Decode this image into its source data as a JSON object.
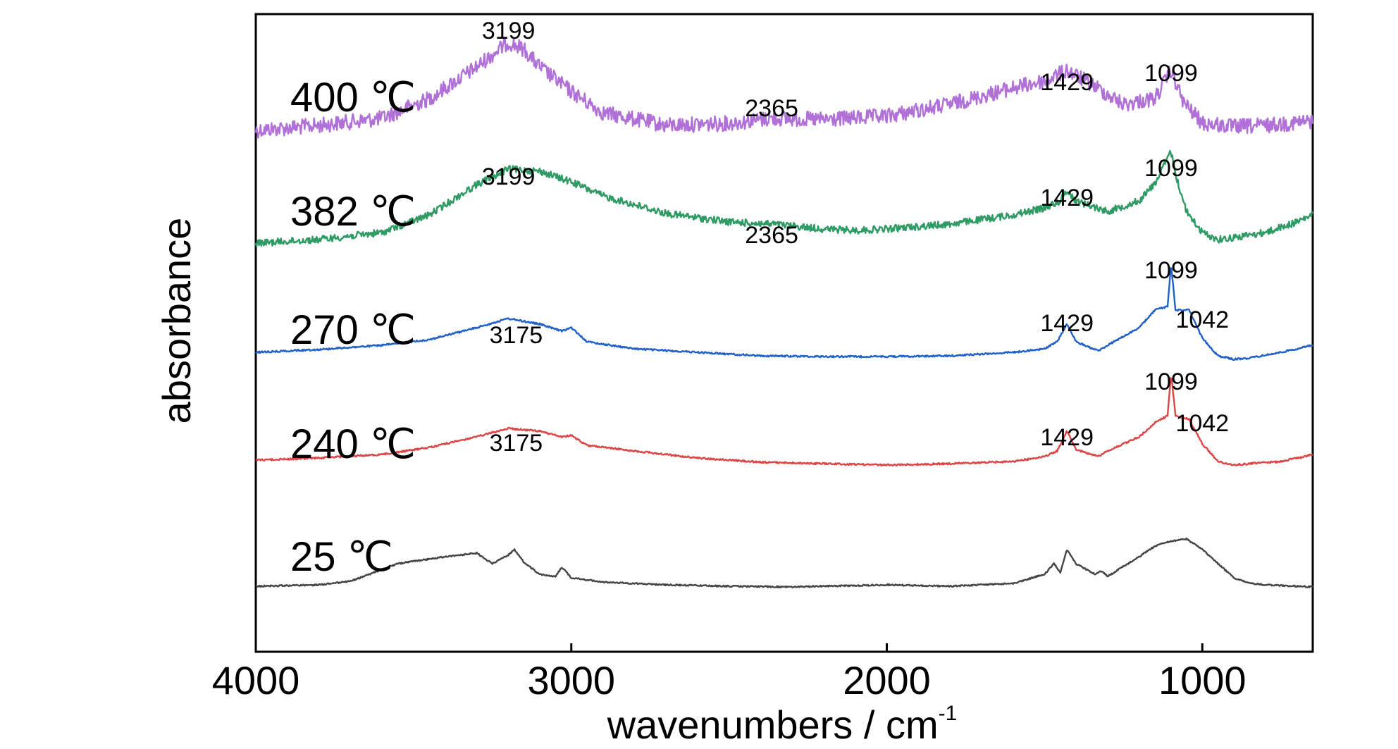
{
  "chart_data": {
    "type": "line",
    "xlabel": "wavenumbers / cm",
    "xlabel_superscript": "-1",
    "ylabel": "absorbance",
    "xlim": [
      4000,
      650
    ],
    "x_reversed": true,
    "x_ticks": [
      4000,
      3000,
      2000,
      1000
    ],
    "y_ticks_shown": false,
    "grid": false,
    "series": [
      {
        "name": "400 ℃",
        "color": "#b070d8",
        "noise": 11,
        "baseline": [
          [
            4000,
            185
          ],
          [
            3800,
            178
          ],
          [
            3600,
            168
          ],
          [
            3450,
            140
          ],
          [
            3300,
            95
          ],
          [
            3200,
            60
          ],
          [
            3150,
            70
          ],
          [
            3100,
            95
          ],
          [
            3000,
            130
          ],
          [
            2900,
            160
          ],
          [
            2700,
            178
          ],
          [
            2500,
            175
          ],
          [
            2365,
            168
          ],
          [
            2200,
            170
          ],
          [
            2000,
            165
          ],
          [
            1800,
            148
          ],
          [
            1600,
            125
          ],
          [
            1500,
            115
          ],
          [
            1429,
            100
          ],
          [
            1350,
            120
          ],
          [
            1250,
            148
          ],
          [
            1150,
            140
          ],
          [
            1099,
            100
          ],
          [
            1060,
            145
          ],
          [
            1000,
            175
          ],
          [
            900,
            180
          ],
          [
            800,
            178
          ],
          [
            650,
            172
          ]
        ],
        "peaks": [
          {
            "label": "3199",
            "x": 3199
          },
          {
            "label": "2365",
            "x": 2365
          },
          {
            "label": "1429",
            "x": 1429
          },
          {
            "label": "1099",
            "x": 1099
          }
        ]
      },
      {
        "name": "382 ℃",
        "color": "#2e9a64",
        "noise": 5,
        "baseline": [
          [
            4000,
            345
          ],
          [
            3800,
            340
          ],
          [
            3600,
            330
          ],
          [
            3450,
            305
          ],
          [
            3300,
            262
          ],
          [
            3200,
            240
          ],
          [
            3100,
            243
          ],
          [
            3000,
            258
          ],
          [
            2900,
            278
          ],
          [
            2700,
            303
          ],
          [
            2500,
            315
          ],
          [
            2365,
            318
          ],
          [
            2200,
            325
          ],
          [
            2100,
            327
          ],
          [
            2000,
            325
          ],
          [
            1800,
            318
          ],
          [
            1600,
            305
          ],
          [
            1500,
            295
          ],
          [
            1450,
            285
          ],
          [
            1429,
            270
          ],
          [
            1400,
            285
          ],
          [
            1300,
            300
          ],
          [
            1200,
            285
          ],
          [
            1150,
            260
          ],
          [
            1099,
            215
          ],
          [
            1080,
            255
          ],
          [
            1050,
            300
          ],
          [
            1000,
            330
          ],
          [
            950,
            340
          ],
          [
            900,
            337
          ],
          [
            800,
            330
          ],
          [
            700,
            315
          ],
          [
            650,
            305
          ]
        ],
        "peaks": [
          {
            "label": "3199",
            "x": 3199
          },
          {
            "label": "2365",
            "x": 2365
          },
          {
            "label": "1429",
            "x": 1429
          },
          {
            "label": "1099",
            "x": 1099
          }
        ]
      },
      {
        "name": "270 ℃",
        "color": "#2060c8",
        "noise": 1.2,
        "baseline": [
          [
            4000,
            500
          ],
          [
            3800,
            496
          ],
          [
            3600,
            490
          ],
          [
            3450,
            482
          ],
          [
            3300,
            465
          ],
          [
            3200,
            452
          ],
          [
            3100,
            460
          ],
          [
            3030,
            470
          ],
          [
            3000,
            465
          ],
          [
            2950,
            485
          ],
          [
            2800,
            495
          ],
          [
            2600,
            500
          ],
          [
            2400,
            505
          ],
          [
            2200,
            506
          ],
          [
            2000,
            506
          ],
          [
            1800,
            505
          ],
          [
            1600,
            500
          ],
          [
            1500,
            495
          ],
          [
            1460,
            485
          ],
          [
            1429,
            460
          ],
          [
            1400,
            485
          ],
          [
            1330,
            498
          ],
          [
            1300,
            490
          ],
          [
            1200,
            465
          ],
          [
            1150,
            440
          ],
          [
            1110,
            435
          ],
          [
            1099,
            375
          ],
          [
            1085,
            440
          ],
          [
            1042,
            440
          ],
          [
            1000,
            480
          ],
          [
            950,
            505
          ],
          [
            900,
            510
          ],
          [
            850,
            508
          ],
          [
            750,
            500
          ],
          [
            650,
            490
          ]
        ],
        "peaks": [
          {
            "label": "3175",
            "x": 3175
          },
          {
            "label": "1429",
            "x": 1429
          },
          {
            "label": "1099",
            "x": 1099
          },
          {
            "label": "1042",
            "x": 1042
          }
        ]
      },
      {
        "name": "240 ℃",
        "color": "#dc4545",
        "noise": 1.2,
        "baseline": [
          [
            4000,
            653
          ],
          [
            3800,
            650
          ],
          [
            3600,
            645
          ],
          [
            3450,
            635
          ],
          [
            3300,
            620
          ],
          [
            3200,
            608
          ],
          [
            3100,
            612
          ],
          [
            3030,
            620
          ],
          [
            3000,
            618
          ],
          [
            2950,
            632
          ],
          [
            2800,
            640
          ],
          [
            2600,
            650
          ],
          [
            2400,
            656
          ],
          [
            2200,
            658
          ],
          [
            2000,
            660
          ],
          [
            1800,
            658
          ],
          [
            1600,
            655
          ],
          [
            1500,
            648
          ],
          [
            1460,
            640
          ],
          [
            1429,
            612
          ],
          [
            1400,
            638
          ],
          [
            1330,
            648
          ],
          [
            1300,
            640
          ],
          [
            1200,
            620
          ],
          [
            1150,
            600
          ],
          [
            1110,
            590
          ],
          [
            1099,
            530
          ],
          [
            1085,
            590
          ],
          [
            1042,
            595
          ],
          [
            1000,
            630
          ],
          [
            950,
            655
          ],
          [
            900,
            660
          ],
          [
            850,
            658
          ],
          [
            750,
            655
          ],
          [
            650,
            645
          ]
        ],
        "peaks": [
          {
            "label": "3175",
            "x": 3175
          },
          {
            "label": "1429",
            "x": 1429
          },
          {
            "label": "1099",
            "x": 1099
          },
          {
            "label": "1042",
            "x": 1042
          }
        ]
      },
      {
        "name": "25 ℃",
        "color": "#444444",
        "noise": 1,
        "baseline": [
          [
            4000,
            832
          ],
          [
            3800,
            830
          ],
          [
            3700,
            825
          ],
          [
            3550,
            800
          ],
          [
            3400,
            790
          ],
          [
            3300,
            785
          ],
          [
            3250,
            800
          ],
          [
            3200,
            788
          ],
          [
            3180,
            780
          ],
          [
            3150,
            798
          ],
          [
            3100,
            815
          ],
          [
            3050,
            818
          ],
          [
            3030,
            805
          ],
          [
            3000,
            820
          ],
          [
            2900,
            826
          ],
          [
            2700,
            830
          ],
          [
            2500,
            832
          ],
          [
            2300,
            833
          ],
          [
            2000,
            830
          ],
          [
            1800,
            832
          ],
          [
            1600,
            828
          ],
          [
            1500,
            815
          ],
          [
            1470,
            800
          ],
          [
            1450,
            812
          ],
          [
            1429,
            780
          ],
          [
            1400,
            800
          ],
          [
            1340,
            815
          ],
          [
            1320,
            810
          ],
          [
            1300,
            818
          ],
          [
            1200,
            790
          ],
          [
            1150,
            775
          ],
          [
            1100,
            768
          ],
          [
            1050,
            765
          ],
          [
            1000,
            780
          ],
          [
            950,
            800
          ],
          [
            900,
            820
          ],
          [
            850,
            828
          ],
          [
            800,
            830
          ],
          [
            700,
            832
          ],
          [
            650,
            833
          ]
        ],
        "peaks": []
      }
    ]
  }
}
